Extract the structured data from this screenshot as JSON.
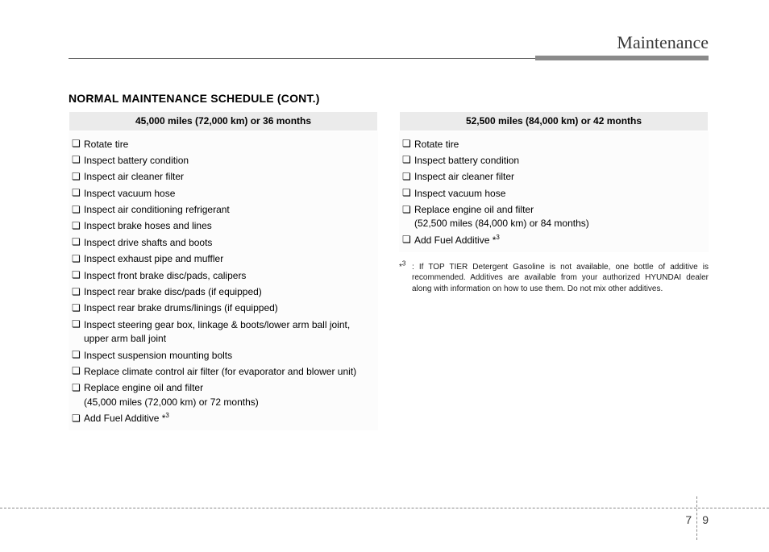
{
  "header": {
    "title": "Maintenance"
  },
  "section": {
    "title": "NORMAL MAINTENANCE SCHEDULE (CONT.)"
  },
  "left": {
    "interval": "45,000 miles (72,000 km) or 36 months",
    "items": [
      {
        "text": "Rotate tire"
      },
      {
        "text": "Inspect battery condition"
      },
      {
        "text": "Inspect air cleaner filter"
      },
      {
        "text": "Inspect vacuum hose"
      },
      {
        "text": "Inspect air conditioning refrigerant"
      },
      {
        "text": "Inspect brake hoses and lines"
      },
      {
        "text": "Inspect drive shafts and boots"
      },
      {
        "text": "Inspect exhaust pipe and muffler"
      },
      {
        "text": "Inspect front brake disc/pads, calipers"
      },
      {
        "text": "Inspect rear brake disc/pads (if equipped)"
      },
      {
        "text": "Inspect rear brake drums/linings (if equipped)"
      },
      {
        "text": "Inspect steering gear box, linkage & boots/lower arm ball joint, upper arm ball joint"
      },
      {
        "text": "Inspect suspension mounting bolts"
      },
      {
        "text": "Replace climate control air filter (for evaporator and blower unit)"
      },
      {
        "text": "Replace engine oil and filter",
        "sub": "(45,000 miles (72,000 km) or 72 months)"
      },
      {
        "text": "Add Fuel Additive *",
        "sup": "3"
      }
    ]
  },
  "right": {
    "interval": "52,500 miles (84,000 km) or 42 months",
    "items": [
      {
        "text": "Rotate tire"
      },
      {
        "text": "Inspect battery condition"
      },
      {
        "text": "Inspect air cleaner filter"
      },
      {
        "text": "Inspect vacuum hose"
      },
      {
        "text": "Replace engine oil and filter",
        "sub": "(52,500 miles (84,000 km) or 84 months)"
      },
      {
        "text": "Add Fuel Additive *",
        "sup": "3"
      }
    ],
    "footnote": {
      "marker": "*",
      "sup": "3",
      "sep": " : ",
      "text": "If TOP TIER Detergent Gasoline is not available, one bottle of additive is recommended. Additives are available from your authorized HYUNDAI dealer along with information on how to use them. Do not mix other additives."
    }
  },
  "pagenum": {
    "chapter": "7",
    "page": "9"
  },
  "glyphs": {
    "bullet": "❏"
  }
}
